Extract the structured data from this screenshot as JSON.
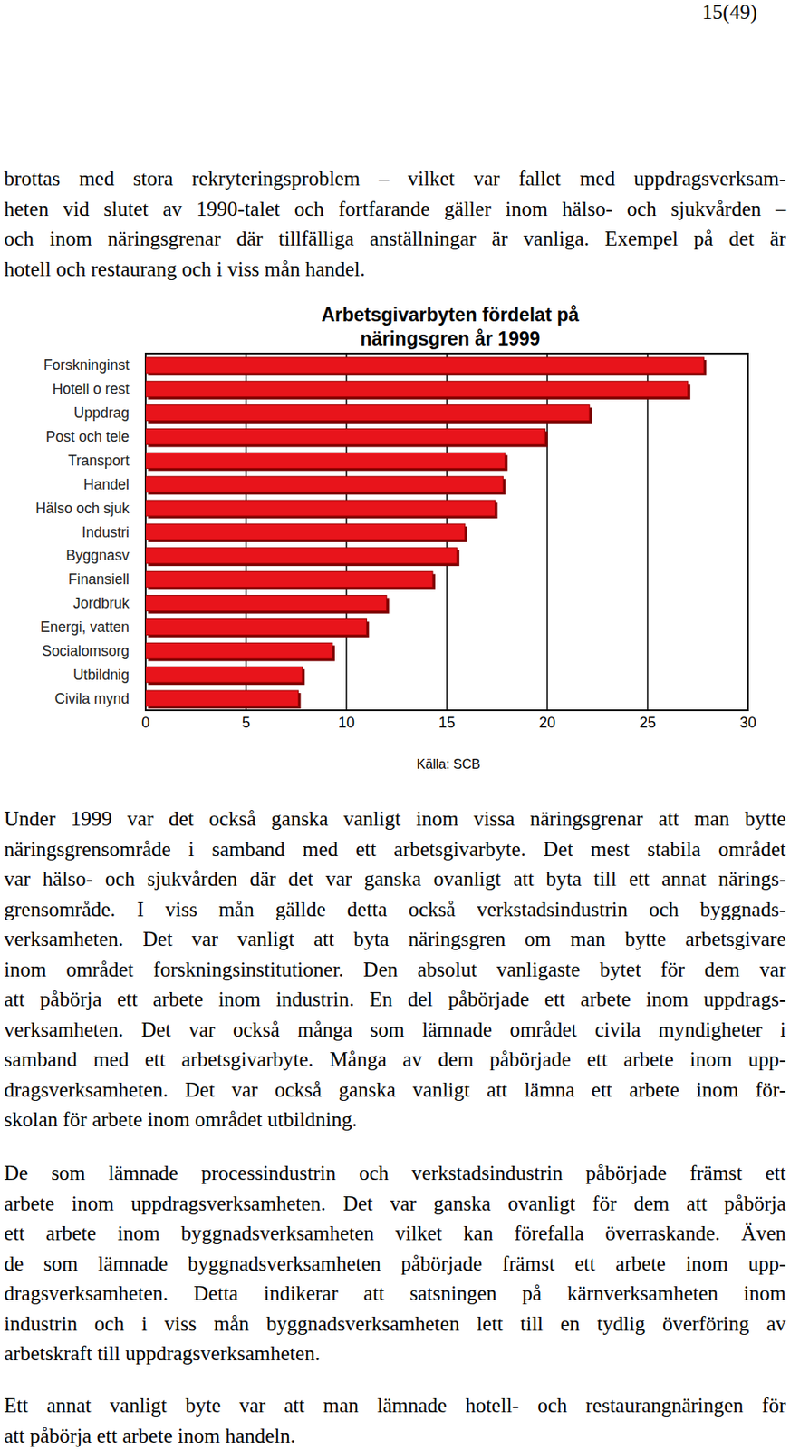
{
  "page_number": "15(49)",
  "paragraphs": [
    [
      "brottas med stora rekryteringsproblem – vilket var fallet med uppdragsverksam-",
      "heten vid slutet av 1990-talet och fortfarande gäller inom hälso- och sjukvården –",
      "och inom näringsgrenar där tillfälliga anställningar är vanliga. Exempel på det är",
      "hotell och restaurang och i viss mån handel."
    ],
    [
      "Under 1999 var det också ganska vanligt inom vissa näringsgrenar att man bytte",
      "näringsgrensområde i samband med ett arbetsgivarbyte. Det mest stabila området",
      "var hälso- och sjukvården där det var ganska ovanligt att byta till ett annat närings-",
      "grensområde. I viss mån gällde detta också verkstadsindustrin och byggnads-",
      "verksamheten. Det var vanligt att byta näringsgren om man bytte arbetsgivare",
      "inom området forskningsinstitutioner. Den absolut vanligaste bytet för dem var",
      "att påbörja ett arbete inom industrin. En del påbörjade ett arbete inom uppdrags-",
      "verksamheten. Det var också många som lämnade området civila myndigheter i",
      "samband med ett arbetsgivarbyte. Många av dem påbörjade ett arbete inom upp-",
      "dragsverksamheten. Det var också ganska vanligt att lämna ett arbete inom för-",
      "skolan för arbete inom området utbildning."
    ],
    [
      "De som lämnade processindustrin och verkstadsindustrin påbörjade främst ett",
      "arbete inom uppdragsverksamheten. Det var ganska ovanligt för dem att påbörja",
      "ett arbete inom byggnadsverksamheten vilket kan förefalla överraskande. Även",
      "de som lämnade byggnadsverksamheten påbörjade främst ett arbete inom upp-",
      "dragsverksamheten. Detta indikerar att satsningen på kärnverksamheten inom",
      "industrin och i viss mån byggnadsverksamheten lett till en tydlig överföring av",
      "arbetskraft till uppdragsverksamheten."
    ],
    [
      "Ett annat vanligt byte var att man lämnade hotell- och restaurangnäringen för",
      "att påbörja ett arbete inom handeln."
    ]
  ],
  "chart_data": {
    "type": "bar",
    "title": "Arbetsgivarbyten fördelat på näringsgren år 1999",
    "orientation": "horizontal",
    "categories": [
      "Forskninginst",
      "Hotell o rest",
      "Uppdrag",
      "Post och tele",
      "Transport",
      "Handel",
      "Hälso och sjuk",
      "Industri",
      "Byggnasv",
      "Finansiell",
      "Jordbruk",
      "Energi, vatten",
      "Socialomsorg",
      "Utbildnig",
      "Civila mynd"
    ],
    "values": [
      27.8,
      27.0,
      22.1,
      19.9,
      17.9,
      17.8,
      17.4,
      15.9,
      15.5,
      14.3,
      12.0,
      11.0,
      9.3,
      7.8,
      7.6
    ],
    "color": "#e8141b",
    "xlim": [
      0,
      30
    ],
    "xticks": [
      0,
      5,
      10,
      15,
      20,
      25,
      30
    ],
    "grid": true,
    "annotations": [
      "Källa: SCB"
    ]
  }
}
